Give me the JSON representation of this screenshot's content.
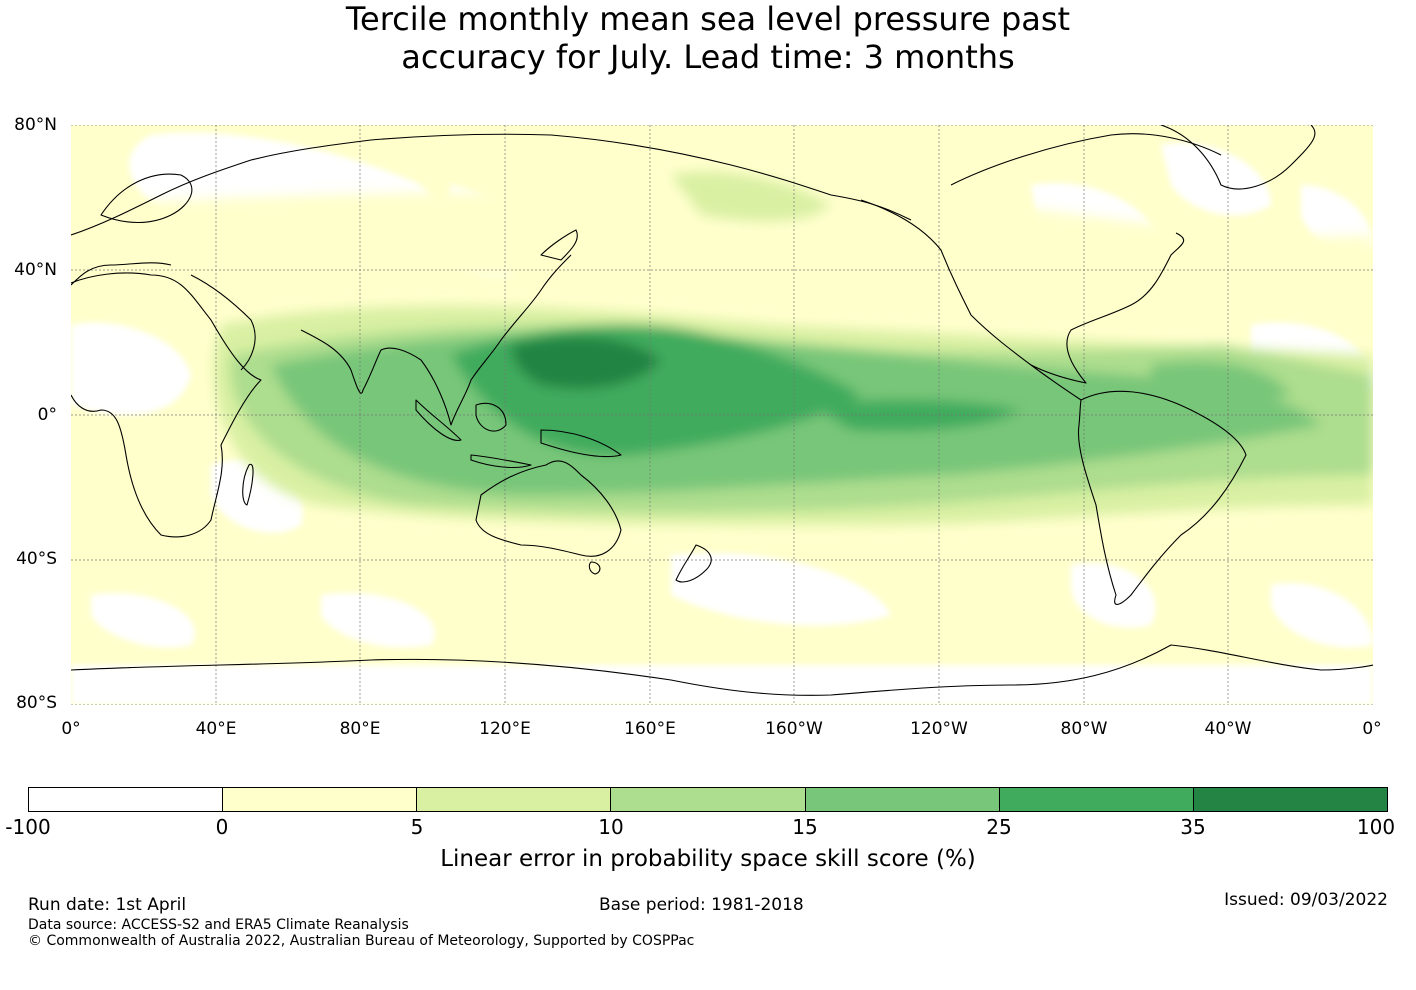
{
  "title": {
    "line1": "Tercile monthly mean sea level pressure past",
    "line2": "accuracy for July. Lead time: 3 months"
  },
  "map": {
    "lat_labels": [
      "80°N",
      "40°N",
      "0°",
      "40°S",
      "80°S"
    ],
    "lon_labels": [
      "0°",
      "40°E",
      "80°E",
      "120°E",
      "160°E",
      "160°W",
      "120°W",
      "80°W",
      "40°W",
      "0°"
    ],
    "lon_range": [
      0,
      360
    ],
    "lat_range": [
      -80,
      80
    ]
  },
  "colorbar": {
    "ticks": [
      "-100",
      "0",
      "5",
      "10",
      "15",
      "25",
      "35",
      "100"
    ],
    "colors": [
      "#ffffff",
      "#ffffcc",
      "#d9f0a3",
      "#addd8e",
      "#78c679",
      "#41ab5d",
      "#238443"
    ],
    "label": "Linear error in probability space skill score (%)"
  },
  "footer": {
    "run_date": "Run date: 1st April",
    "base_period": "Base period: 1981-2018",
    "issued": "Issued: 09/03/2022",
    "data_source": "Data source: ACCESS-S2 and ERA5 Climate Reanalysis",
    "copyright": "© Commonwealth of Australia 2022, Australian Bureau of Meteorology, Supported by COSPPac"
  }
}
